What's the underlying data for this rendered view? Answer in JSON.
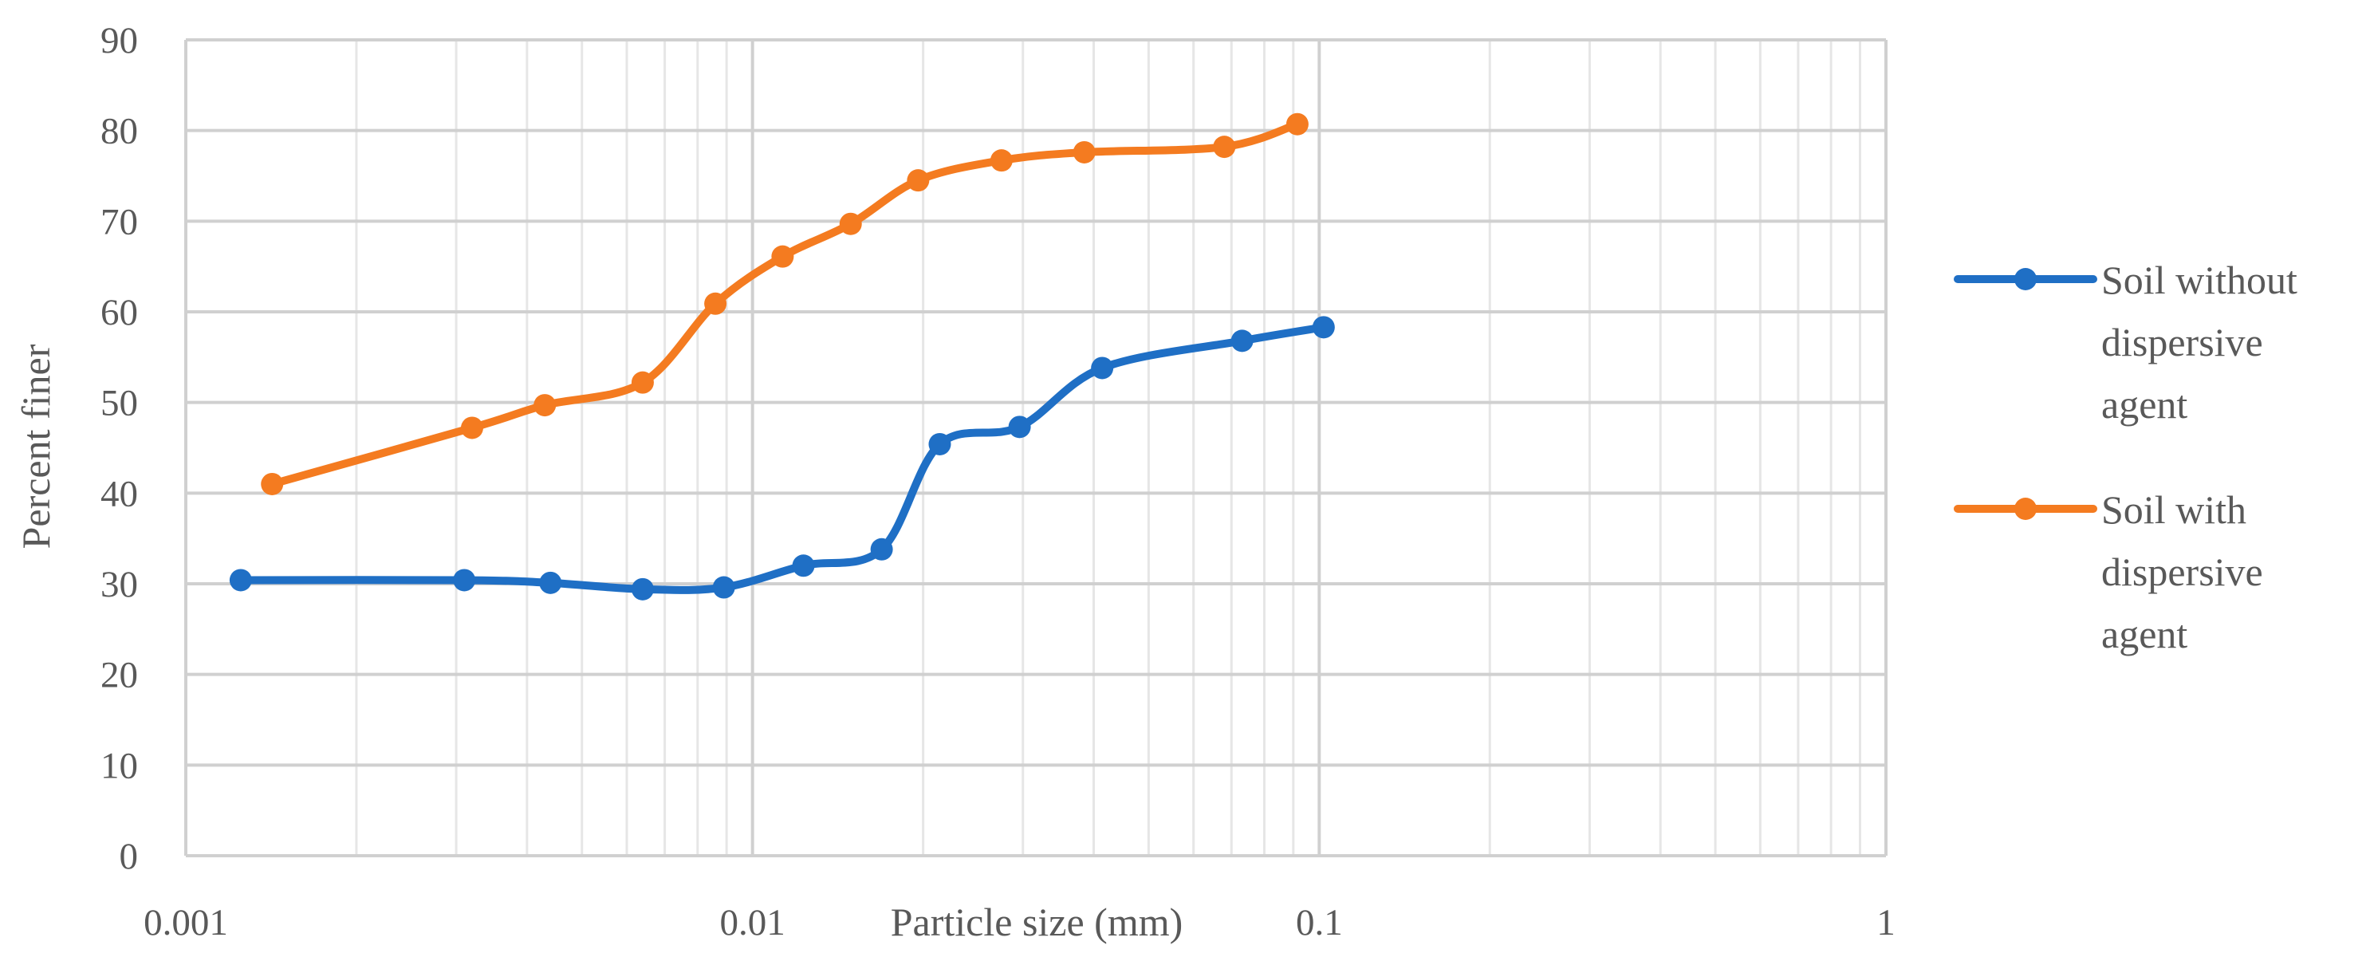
{
  "chart_data": {
    "type": "line",
    "xscale": "log",
    "xlim": [
      0.001,
      1
    ],
    "ylim": [
      0,
      90
    ],
    "grid": true,
    "legend_position": "right",
    "xlabel": "Particle size (mm)",
    "ylabel": "Percent finer",
    "xticks": [
      "0.001",
      "0.01",
      "0.1",
      "1"
    ],
    "yticks": [
      "0",
      "10",
      "20",
      "30",
      "40",
      "50",
      "60",
      "70",
      "80",
      "90"
    ],
    "series": [
      {
        "name": "Soil without dispersive agent",
        "legend_lines": [
          "Soil without",
          "dispersive",
          "agent"
        ],
        "color": "#1F6FC5",
        "points": [
          [
            0.00125,
            30.4
          ],
          [
            0.0031,
            30.4
          ],
          [
            0.0044,
            30.1
          ],
          [
            0.0064,
            29.4
          ],
          [
            0.0089,
            29.6
          ],
          [
            0.0123,
            32.0
          ],
          [
            0.0169,
            33.8
          ],
          [
            0.0214,
            45.4
          ],
          [
            0.0296,
            47.3
          ],
          [
            0.0414,
            53.8
          ],
          [
            0.0731,
            56.8
          ],
          [
            0.1018,
            58.3
          ]
        ]
      },
      {
        "name": "Soil with dispersive agent",
        "legend_lines": [
          "Soil with",
          "dispersive",
          "agent"
        ],
        "color": "#F47B20",
        "points": [
          [
            0.00142,
            41.0
          ],
          [
            0.0032,
            47.2
          ],
          [
            0.0043,
            49.7
          ],
          [
            0.0064,
            52.2
          ],
          [
            0.0086,
            60.9
          ],
          [
            0.0113,
            66.1
          ],
          [
            0.0149,
            69.7
          ],
          [
            0.0196,
            74.5
          ],
          [
            0.0275,
            76.7
          ],
          [
            0.0385,
            77.6
          ],
          [
            0.068,
            78.2
          ],
          [
            0.0915,
            80.7
          ]
        ]
      }
    ]
  }
}
